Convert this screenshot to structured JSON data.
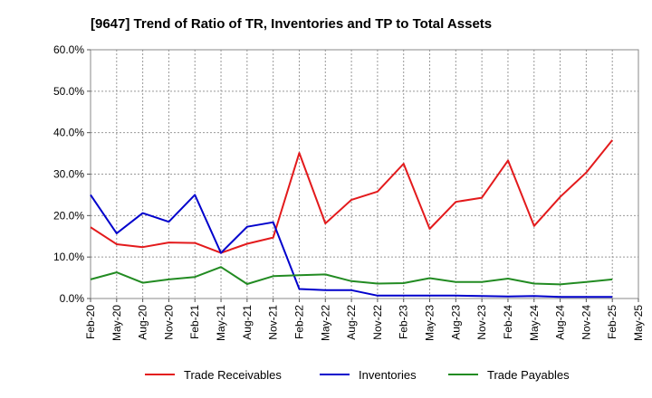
{
  "chart_data": {
    "type": "line",
    "title": "[9647]  Trend of Ratio of TR, Inventories and TP to Total Assets",
    "xlabel": "",
    "ylabel": "",
    "ylim": [
      0,
      60
    ],
    "y_ticks": [
      "0.0%",
      "10.0%",
      "20.0%",
      "30.0%",
      "40.0%",
      "50.0%",
      "60.0%"
    ],
    "x_ticks": [
      "Feb-20",
      "May-20",
      "Aug-20",
      "Nov-20",
      "Feb-21",
      "May-21",
      "Aug-21",
      "Nov-21",
      "Feb-22",
      "May-22",
      "Aug-22",
      "Nov-22",
      "Feb-23",
      "May-23",
      "Aug-23",
      "Nov-23",
      "Feb-24",
      "May-24",
      "Aug-24",
      "Nov-24",
      "Feb-25",
      "May-25"
    ],
    "categories": [
      "Feb-20",
      "May-20",
      "Aug-20",
      "Nov-20",
      "Feb-21",
      "May-21",
      "Aug-21",
      "Nov-21",
      "Feb-22",
      "May-22",
      "Aug-22",
      "Nov-22",
      "Feb-23",
      "May-23",
      "Aug-23",
      "Nov-23",
      "Feb-24",
      "May-24",
      "Aug-24",
      "Nov-24",
      "Feb-25"
    ],
    "grid": true,
    "legend_position": "bottom",
    "series": [
      {
        "name": "Trade Receivables",
        "color": "#e31a1c",
        "values": [
          17.2,
          13.1,
          12.4,
          13.5,
          13.4,
          11.0,
          13.2,
          14.7,
          35.1,
          18.1,
          23.8,
          25.8,
          32.5,
          16.8,
          23.3,
          24.3,
          33.3,
          17.5,
          24.5,
          30.4,
          38.2
        ]
      },
      {
        "name": "Inventories",
        "color": "#0000cc",
        "values": [
          25.0,
          15.7,
          20.6,
          18.5,
          25.0,
          11.0,
          17.3,
          18.4,
          2.3,
          2.0,
          2.0,
          0.7,
          0.7,
          0.7,
          0.7,
          0.6,
          0.5,
          0.6,
          0.4,
          0.4,
          0.4
        ]
      },
      {
        "name": "Trade Payables",
        "color": "#228b22",
        "values": [
          4.6,
          6.3,
          3.8,
          4.6,
          5.2,
          7.6,
          3.5,
          5.4,
          5.6,
          5.8,
          4.2,
          3.6,
          3.7,
          4.9,
          4.0,
          4.0,
          4.8,
          3.6,
          3.4,
          4.0,
          4.6
        ]
      }
    ]
  }
}
